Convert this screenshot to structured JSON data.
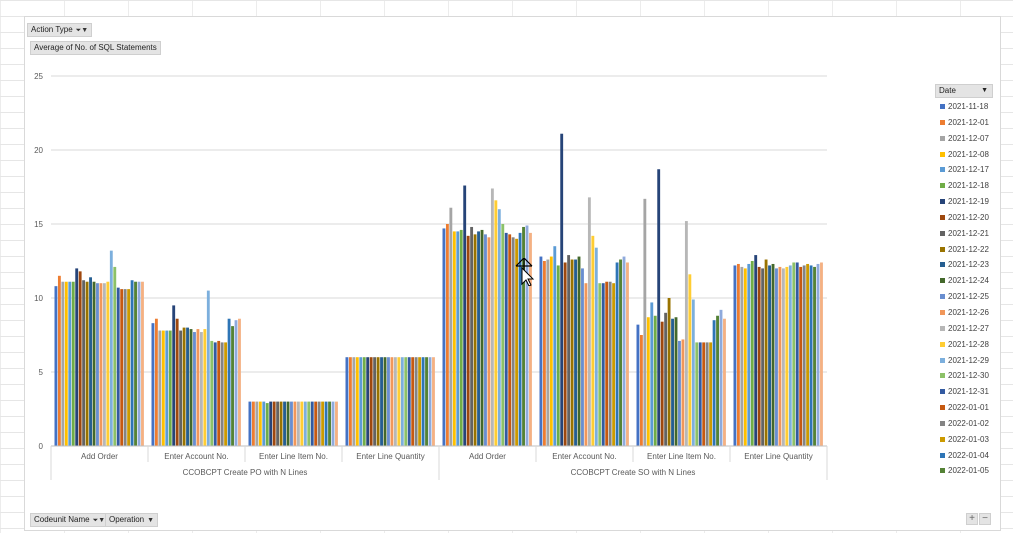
{
  "filters": {
    "action_type": "Action Type",
    "value_field": "Average of No. of SQL Statements",
    "codeunit_name": "Codeunit Name",
    "operation": "Operation"
  },
  "legend_title": "Date",
  "zoom": {
    "plus": "+",
    "minus": "−"
  },
  "chart_data": {
    "type": "bar",
    "title": "",
    "ylabel": "",
    "xlabel": "",
    "ylim": [
      0,
      25
    ],
    "yticks": [
      0,
      5,
      10,
      15,
      20,
      25
    ],
    "grid": true,
    "legend_position": "right",
    "groups": [
      {
        "name": "CCOBCPT Create PO with N Lines",
        "categories": [
          "Add Order",
          "Enter Account No.",
          "Enter Line Item No.",
          "Enter Line Quantity"
        ]
      },
      {
        "name": "CCOBCPT Create SO with N Lines",
        "categories": [
          "Add Order",
          "Enter Account No.",
          "Enter Line Item No.",
          "Enter Line Quantity"
        ]
      }
    ],
    "series": [
      {
        "name": "2021-11-18",
        "color": "#4472c4",
        "values": [
          10.8,
          8.3,
          3.0,
          6.0,
          14.7,
          12.8,
          8.2,
          12.2
        ]
      },
      {
        "name": "2021-12-01",
        "color": "#ed7d31",
        "values": [
          11.5,
          8.6,
          3.0,
          6.0,
          15.0,
          12.5,
          7.5,
          12.3
        ]
      },
      {
        "name": "2021-12-07",
        "color": "#a5a5a5",
        "values": [
          11.1,
          7.8,
          3.0,
          6.0,
          16.1,
          12.6,
          16.7,
          12.1
        ]
      },
      {
        "name": "2021-12-08",
        "color": "#ffc000",
        "values": [
          11.1,
          7.8,
          3.0,
          6.0,
          14.5,
          12.8,
          8.7,
          12.0
        ]
      },
      {
        "name": "2021-12-17",
        "color": "#5b9bd5",
        "values": [
          11.1,
          7.8,
          3.0,
          6.0,
          14.5,
          13.5,
          9.7,
          12.3
        ]
      },
      {
        "name": "2021-12-18",
        "color": "#70ad47",
        "values": [
          11.1,
          7.8,
          2.9,
          6.0,
          14.6,
          12.2,
          8.8,
          12.5
        ]
      },
      {
        "name": "2021-12-19",
        "color": "#264478",
        "values": [
          12.0,
          9.5,
          3.0,
          6.0,
          17.6,
          21.1,
          18.7,
          12.9
        ]
      },
      {
        "name": "2021-12-20",
        "color": "#9e480e",
        "values": [
          11.8,
          8.6,
          3.0,
          6.0,
          14.2,
          12.4,
          8.4,
          12.1
        ]
      },
      {
        "name": "2021-12-21",
        "color": "#636363",
        "values": [
          11.2,
          7.8,
          3.0,
          6.0,
          14.8,
          12.9,
          9.0,
          12.0
        ]
      },
      {
        "name": "2021-12-22",
        "color": "#997300",
        "values": [
          11.1,
          8.0,
          3.0,
          6.0,
          14.3,
          12.6,
          10.0,
          12.6
        ]
      },
      {
        "name": "2021-12-23",
        "color": "#255e91",
        "values": [
          11.4,
          8.0,
          3.0,
          6.0,
          14.5,
          12.6,
          8.6,
          12.2
        ]
      },
      {
        "name": "2021-12-24",
        "color": "#43682b",
        "values": [
          11.1,
          7.9,
          3.0,
          6.0,
          14.6,
          12.8,
          8.7,
          12.3
        ]
      },
      {
        "name": "2021-12-25",
        "color": "#698ed0",
        "values": [
          11.0,
          7.7,
          3.0,
          6.0,
          14.3,
          12.0,
          7.1,
          12.0
        ]
      },
      {
        "name": "2021-12-26",
        "color": "#f1975a",
        "values": [
          11.0,
          7.9,
          3.0,
          6.0,
          14.1,
          11.0,
          7.2,
          12.1
        ]
      },
      {
        "name": "2021-12-27",
        "color": "#b7b7b7",
        "values": [
          11.0,
          7.7,
          3.0,
          6.0,
          17.4,
          16.8,
          15.2,
          12.0
        ]
      },
      {
        "name": "2021-12-28",
        "color": "#ffcd33",
        "values": [
          11.1,
          7.9,
          3.0,
          6.0,
          16.6,
          14.2,
          11.6,
          12.1
        ]
      },
      {
        "name": "2021-12-29",
        "color": "#7cafdd",
        "values": [
          13.2,
          10.5,
          3.0,
          6.0,
          16.0,
          13.4,
          9.9,
          12.2
        ]
      },
      {
        "name": "2021-12-30",
        "color": "#8cc168",
        "values": [
          12.1,
          7.1,
          3.0,
          6.0,
          15.0,
          11.0,
          7.0,
          12.4
        ]
      },
      {
        "name": "2021-12-31",
        "color": "#335aa1",
        "values": [
          10.7,
          7.0,
          3.0,
          6.0,
          14.4,
          11.0,
          7.0,
          12.4
        ]
      },
      {
        "name": "2022-01-01",
        "color": "#c65911",
        "values": [
          10.6,
          7.1,
          3.0,
          6.0,
          14.3,
          11.1,
          7.0,
          12.1
        ]
      },
      {
        "name": "2022-01-02",
        "color": "#848484",
        "values": [
          10.6,
          7.0,
          3.0,
          6.0,
          14.1,
          11.1,
          7.0,
          12.2
        ]
      },
      {
        "name": "2022-01-03",
        "color": "#cc9a00",
        "values": [
          10.6,
          7.0,
          3.0,
          6.0,
          14.0,
          11.0,
          7.0,
          12.3
        ]
      },
      {
        "name": "2022-01-04",
        "color": "#2e75b6",
        "values": [
          11.2,
          8.6,
          3.0,
          6.0,
          14.4,
          12.4,
          8.5,
          12.2
        ]
      },
      {
        "name": "2022-01-05",
        "color": "#548235",
        "values": [
          11.1,
          8.1,
          3.0,
          6.0,
          14.8,
          12.6,
          8.8,
          12.1
        ]
      },
      {
        "name": "",
        "color": "#8faadc",
        "values": [
          11.1,
          8.5,
          3.0,
          6.0,
          14.9,
          12.8,
          9.2,
          12.3
        ]
      },
      {
        "name": "",
        "color": "#f4b183",
        "values": [
          11.1,
          8.6,
          3.0,
          6.0,
          14.4,
          12.4,
          8.6,
          12.4
        ]
      }
    ]
  }
}
